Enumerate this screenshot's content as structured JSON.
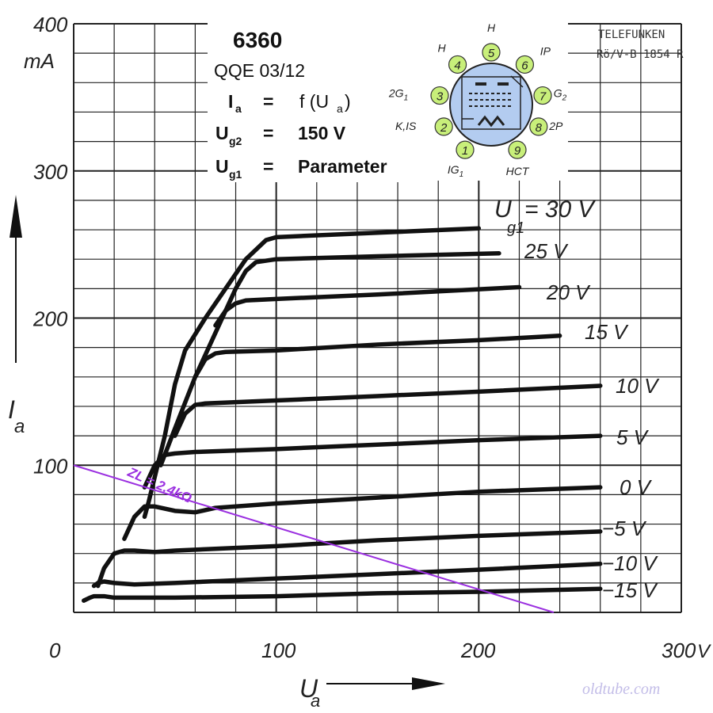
{
  "chart_data": {
    "type": "line",
    "title": "6360",
    "subtitle": "QQE 03/12",
    "conditions": {
      "ia_sym": "I",
      "ia_sub": "a",
      "ia_op": "=",
      "ia_val": "f (U",
      "ia_val_sub": "a",
      "ia_val_end": ")",
      "ug2_sym": "U",
      "ug2_sub": "g2",
      "ug2_op": "=",
      "ug2_val": "150 V",
      "ug1_sym": "U",
      "ug1_sub": "g1",
      "ug1_op": "=",
      "ug1_val": "Parameter"
    },
    "manufacturer": {
      "line1": "TELEFUNKEN",
      "line2": "Rö/V-B 1854 R"
    },
    "xlabel": "U",
    "xlabel_sub": "a",
    "ylabel": "I",
    "ylabel_sub": "a",
    "y_unit": "mA",
    "x_unit": "V",
    "xlim": [
      0,
      300
    ],
    "ylim": [
      0,
      400
    ],
    "x_ticks": [
      "0",
      "100",
      "200"
    ],
    "y_ticks": [
      "100",
      "200",
      "300",
      "400"
    ],
    "grid": true,
    "series": [
      {
        "name": "Ug1 = 30 V",
        "label": "U",
        "label_sub": "g1",
        "label_val": "= 30 V",
        "x": [
          35,
          37,
          45,
          50,
          55,
          65,
          75,
          85,
          95,
          100,
          150,
          200
        ],
        "y": [
          65,
          75,
          120,
          155,
          178,
          200,
          220,
          240,
          253,
          255,
          258,
          261
        ]
      },
      {
        "name": "25 V",
        "label": "25 V",
        "x": [
          43,
          50,
          60,
          70,
          75,
          80,
          85,
          90,
          100,
          150,
          210
        ],
        "y": [
          100,
          125,
          160,
          190,
          205,
          220,
          232,
          238,
          240,
          242,
          244
        ]
      },
      {
        "name": "20 V",
        "label": "20 V",
        "x": [
          70,
          75,
          80,
          85,
          100,
          150,
          220
        ],
        "y": [
          195,
          205,
          210,
          212,
          213,
          216,
          221
        ]
      },
      {
        "name": "15 V",
        "label": "15 V",
        "x": [
          60,
          65,
          70,
          75,
          100,
          150,
          200,
          240
        ],
        "y": [
          160,
          172,
          176,
          177,
          178,
          182,
          185,
          188
        ]
      },
      {
        "name": "10 V",
        "label": "10 V",
        "x": [
          50,
          55,
          60,
          65,
          100,
          150,
          200,
          260
        ],
        "y": [
          120,
          135,
          141,
          142,
          144,
          147,
          150,
          154
        ]
      },
      {
        "name": "5 V",
        "label": "5 V",
        "x": [
          35,
          40,
          45,
          50,
          60,
          100,
          150,
          200,
          260
        ],
        "y": [
          85,
          100,
          107,
          108,
          109,
          111,
          114,
          117,
          120
        ]
      },
      {
        "name": "0 V",
        "label": "0 V",
        "x": [
          25,
          30,
          35,
          40,
          50,
          60,
          70,
          100,
          150,
          200,
          260
        ],
        "y": [
          50,
          65,
          72,
          72,
          69,
          68,
          71,
          74,
          78,
          82,
          85
        ]
      },
      {
        "name": "-5 V",
        "label": "−5 V",
        "x": [
          12,
          15,
          20,
          25,
          30,
          40,
          50,
          100,
          150,
          200,
          260
        ],
        "y": [
          18,
          30,
          40,
          42,
          42,
          41,
          42,
          45,
          49,
          52,
          55
        ]
      },
      {
        "name": "-10 V",
        "label": "−10 V",
        "x": [
          10,
          12,
          15,
          20,
          30,
          50,
          100,
          150,
          200,
          260
        ],
        "y": [
          18,
          20,
          21,
          20,
          19,
          20,
          23,
          26,
          29,
          33
        ]
      },
      {
        "name": "-15 V",
        "label": "−15 V",
        "x": [
          5,
          8,
          10,
          15,
          20,
          50,
          100,
          150,
          200,
          260
        ],
        "y": [
          8,
          10,
          11,
          11,
          10,
          10,
          11,
          13,
          14,
          16
        ]
      }
    ],
    "load_line": {
      "label": "ZL = 2.4kΩ",
      "x": [
        0,
        237
      ],
      "y": [
        100,
        0
      ],
      "color": "#9b30e0"
    },
    "curve_color": "#111111",
    "watermark": "oldtube.com",
    "pinout": {
      "pins": [
        {
          "num": "1",
          "label": "IG",
          "label_sub": "1"
        },
        {
          "num": "2",
          "label": "K,IS",
          "label_sub": ""
        },
        {
          "num": "3",
          "label": "2G",
          "label_sub": "1"
        },
        {
          "num": "4",
          "label": "H",
          "label_sub": ""
        },
        {
          "num": "5",
          "label": "H",
          "label_sub": ""
        },
        {
          "num": "6",
          "label": "IP",
          "label_sub": ""
        },
        {
          "num": "7",
          "label": "G",
          "label_sub": "2"
        },
        {
          "num": "8",
          "label": "2P",
          "label_sub": ""
        },
        {
          "num": "9",
          "label": "HCT",
          "label_sub": ""
        }
      ],
      "pin_color": "#c8ef7a",
      "bulb_color": "#b3ccf0"
    }
  }
}
